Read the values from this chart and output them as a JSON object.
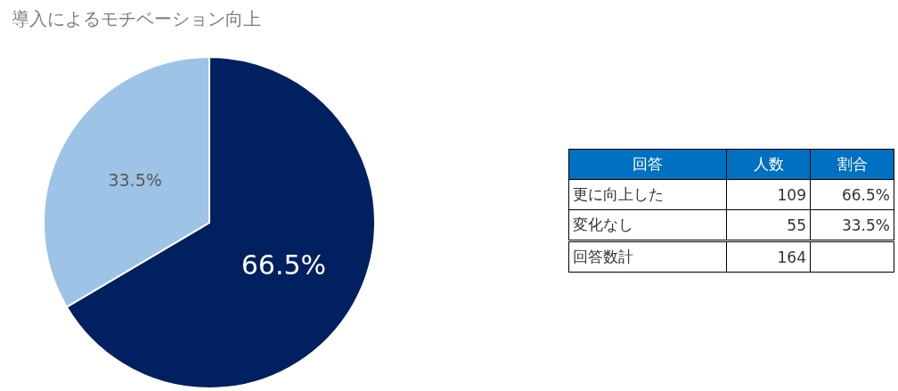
{
  "chart_data": [
    {
      "type": "pie",
      "title": "導入によるモチベーション向上",
      "categories": [
        null,
        null
      ],
      "values": [
        66.5,
        33.5
      ],
      "value_labels": [
        "66.5%",
        "33.5%"
      ],
      "colors": [
        "#002060",
        "#9dc3e6"
      ]
    },
    {
      "type": "other",
      "annotations": [
        "回答",
        "人数",
        "割合",
        "更に向上した",
        "109",
        "66.5%",
        "変化なし",
        "55",
        "33.5%",
        "回答数計",
        "164"
      ]
    }
  ]
}
